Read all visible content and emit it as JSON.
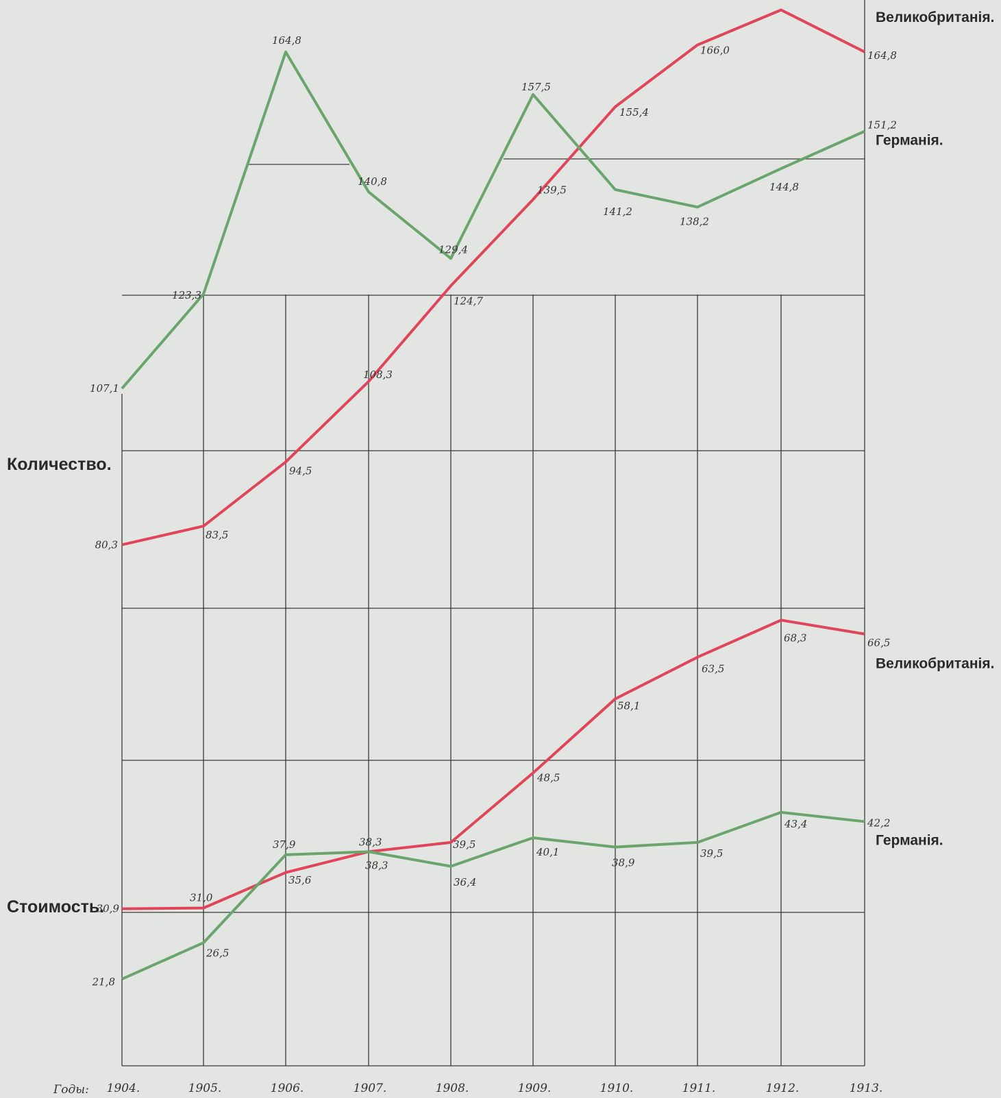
{
  "chart_data": [
    {
      "type": "line",
      "ylabel": "Количество.",
      "categories": [
        "1904.",
        "1905.",
        "1906.",
        "1907.",
        "1908.",
        "1909.",
        "1910.",
        "1911.",
        "1912.",
        "1913."
      ],
      "series": [
        {
          "name": "Великобританія.",
          "color": "#e0455a",
          "values": [
            80.3,
            83.5,
            94.5,
            108.3,
            124.7,
            139.5,
            155.4,
            166.0,
            172.0,
            164.8
          ],
          "labels": [
            "80,3",
            "83,5",
            "94,5",
            "108,3",
            "124,7",
            "139,5",
            "155,4",
            "166,0",
            "",
            "164,8"
          ]
        },
        {
          "name": "Германія.",
          "color": "#6ba56e",
          "values": [
            107.1,
            123.3,
            164.8,
            140.8,
            129.4,
            157.5,
            141.2,
            138.2,
            144.8,
            151.2
          ],
          "labels": [
            "107,1",
            "123,3",
            "164,8",
            "140,8",
            "129,4",
            "157,5",
            "141,2",
            "138,2",
            "144,8",
            "151,2"
          ]
        }
      ]
    },
    {
      "type": "line",
      "ylabel": "Стоимость.",
      "categories": [
        "1904.",
        "1905.",
        "1906.",
        "1907.",
        "1908.",
        "1909.",
        "1910.",
        "1911.",
        "1912.",
        "1913."
      ],
      "series": [
        {
          "name": "Великобританія.",
          "color": "#e0455a",
          "values": [
            30.9,
            31.0,
            35.6,
            38.3,
            39.5,
            48.5,
            58.1,
            63.5,
            68.3,
            66.5
          ],
          "labels": [
            "30,9",
            "31,0",
            "35,6",
            "38,3",
            "39,5",
            "48,5",
            "58,1",
            "63,5",
            "68,3",
            "66,5"
          ]
        },
        {
          "name": "Германія.",
          "color": "#6ba56e",
          "values": [
            21.8,
            26.5,
            37.9,
            38.3,
            36.4,
            40.1,
            38.9,
            39.5,
            43.4,
            42.2
          ],
          "labels": [
            "21,8",
            "26,5",
            "37,9",
            "38,3",
            "36,4",
            "40,1",
            "38,9",
            "39,5",
            "43,4",
            "42,2"
          ]
        }
      ]
    }
  ],
  "axis": {
    "years_label": "Годы:"
  }
}
